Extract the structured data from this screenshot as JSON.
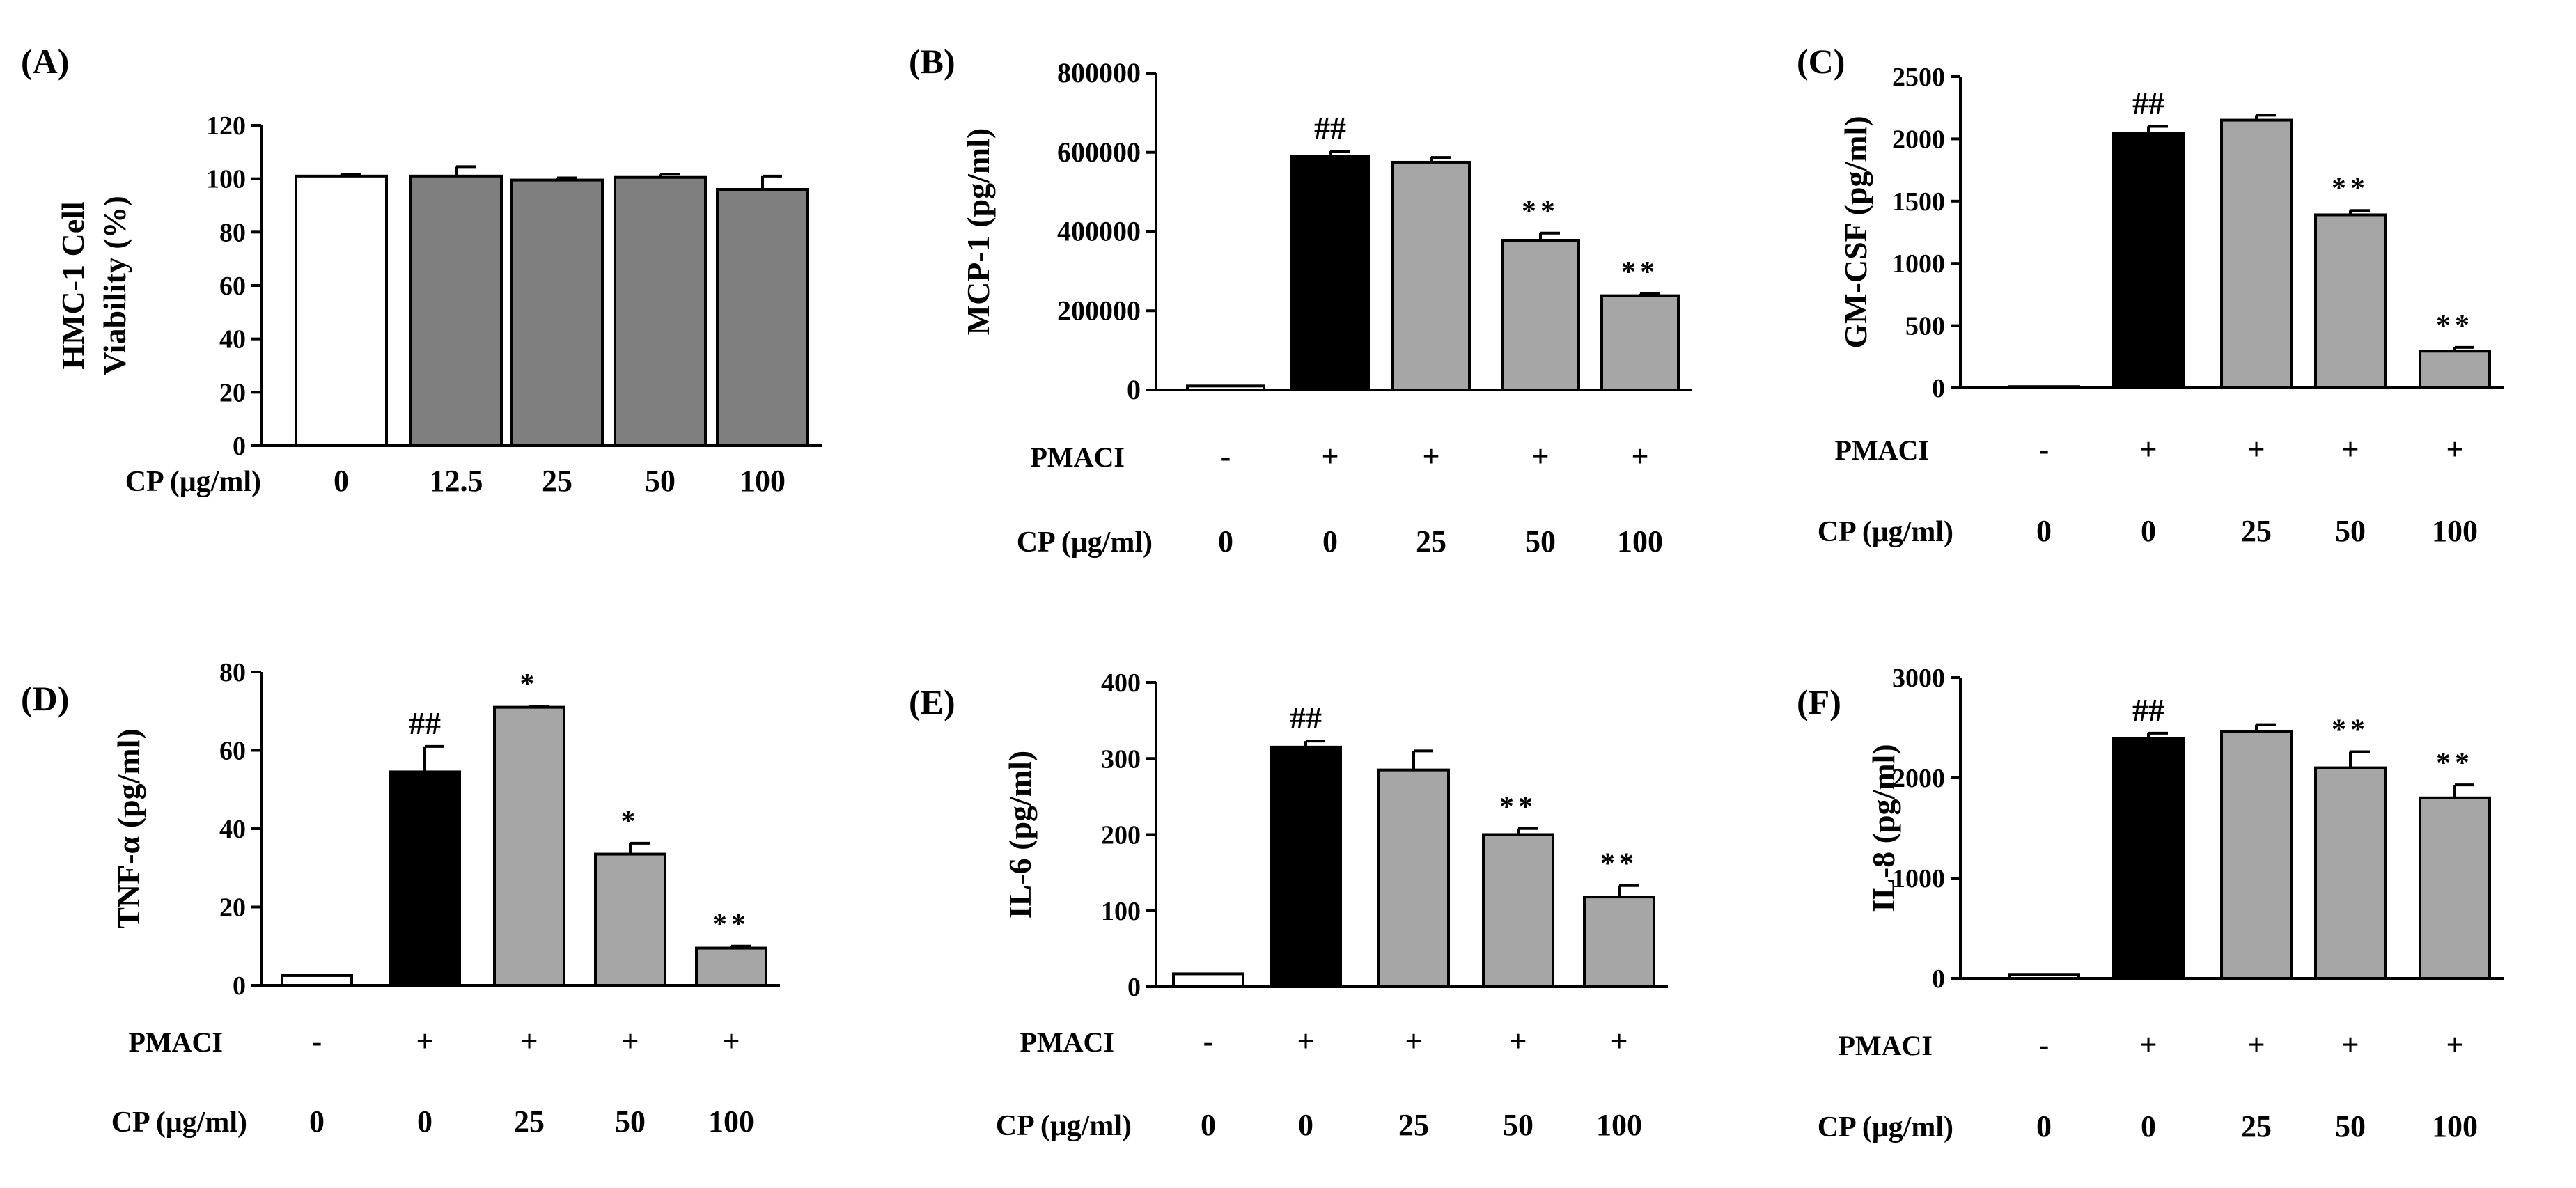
{
  "colors": {
    "control": "#ffffff",
    "black": "#000000",
    "gray_light": "#a6a6a6",
    "gray_dark": "#7f7f7f",
    "axis": "#000000"
  },
  "chart_data": [
    {
      "panel": "(A)",
      "type": "bar",
      "ylabel_lines": [
        "HMC-1 Cell",
        "Viability (%)"
      ],
      "ylim": [
        0,
        120
      ],
      "yticks": [
        0,
        20,
        40,
        60,
        80,
        100,
        120
      ],
      "categories": [
        "0",
        "12.5",
        "25",
        "50",
        "100"
      ],
      "values": [
        101,
        101,
        99.5,
        100.5,
        96
      ],
      "errors": [
        0.6,
        3.5,
        0.8,
        1.2,
        5
      ],
      "fills": [
        "control",
        "gray_dark",
        "gray_dark",
        "gray_dark",
        "gray_dark"
      ],
      "annotations": [
        "",
        "",
        "",
        "",
        ""
      ],
      "pmaci": null,
      "pmaci_label": "",
      "cp_label": "CP (μg/ml)"
    },
    {
      "panel": "(B)",
      "type": "bar",
      "ylabel_lines": [
        "MCP-1 (pg/ml)"
      ],
      "ylim": [
        0,
        800000
      ],
      "yticks": [
        0,
        200000,
        400000,
        600000,
        800000
      ],
      "categories": [
        "0",
        "0",
        "25",
        "50",
        "100"
      ],
      "values": [
        10000,
        590000,
        575000,
        378000,
        238000
      ],
      "errors": [
        0,
        13000,
        12000,
        18000,
        5000
      ],
      "fills": [
        "control",
        "black",
        "gray_light",
        "gray_light",
        "gray_light"
      ],
      "annotations": [
        "",
        "##",
        "",
        "**",
        "**"
      ],
      "pmaci": [
        "-",
        "+",
        "+",
        "+",
        "+"
      ],
      "pmaci_label": "PMACI",
      "cp_label": "CP (μg/ml)"
    },
    {
      "panel": "(C)",
      "type": "bar",
      "ylabel_lines": [
        "GM-CSF (pg/ml)"
      ],
      "ylim": [
        0,
        2500
      ],
      "yticks": [
        0,
        500,
        1000,
        1500,
        2000,
        2500
      ],
      "categories": [
        "0",
        "0",
        "25",
        "50",
        "100"
      ],
      "values": [
        10,
        2045,
        2150,
        1390,
        295
      ],
      "errors": [
        0,
        55,
        40,
        35,
        30
      ],
      "fills": [
        "control",
        "black",
        "gray_light",
        "gray_light",
        "gray_light"
      ],
      "annotations": [
        "",
        "##",
        "",
        "**",
        "**"
      ],
      "pmaci": [
        "-",
        "+",
        "+",
        "+",
        "+"
      ],
      "pmaci_label": "PMACI",
      "cp_label": "CP (μg/ml)"
    },
    {
      "panel": "(D)",
      "type": "bar",
      "ylabel_lines": [
        "TNF-α (pg/ml)"
      ],
      "ylim": [
        0,
        80
      ],
      "yticks": [
        0,
        20,
        40,
        60,
        80
      ],
      "categories": [
        "0",
        "0",
        "25",
        "50",
        "100"
      ],
      "values": [
        2.5,
        54.5,
        71,
        33.5,
        9.5
      ],
      "errors": [
        0,
        6.5,
        0.3,
        2.8,
        0.5
      ],
      "fills": [
        "control",
        "black",
        "gray_light",
        "gray_light",
        "gray_light"
      ],
      "annotations": [
        "",
        "##",
        "*",
        "*",
        "**"
      ],
      "pmaci": [
        "-",
        "+",
        "+",
        "+",
        "+"
      ],
      "pmaci_label": "PMACI",
      "cp_label": "CP (μg/ml)"
    },
    {
      "panel": "(E)",
      "type": "bar",
      "ylabel_lines": [
        "IL-6 (pg/ml)"
      ],
      "ylim": [
        0,
        400
      ],
      "yticks": [
        0,
        100,
        200,
        300,
        400
      ],
      "categories": [
        "0",
        "0",
        "25",
        "50",
        "100"
      ],
      "values": [
        17,
        315,
        285,
        200,
        118
      ],
      "errors": [
        0,
        8,
        25,
        8,
        15
      ],
      "fills": [
        "control",
        "black",
        "gray_light",
        "gray_light",
        "gray_light"
      ],
      "annotations": [
        "",
        "##",
        "",
        "**",
        "**"
      ],
      "pmaci": [
        "-",
        "+",
        "+",
        "+",
        "+"
      ],
      "pmaci_label": "PMACI",
      "cp_label": "CP (μg/ml)"
    },
    {
      "panel": "(F)",
      "type": "bar",
      "ylabel_lines": [
        "IL-8 (pg/ml)"
      ],
      "ylim": [
        0,
        3000
      ],
      "yticks": [
        0,
        1000,
        2000,
        3000
      ],
      "categories": [
        "0",
        "0",
        "25",
        "50",
        "100"
      ],
      "values": [
        40,
        2390,
        2460,
        2100,
        1800
      ],
      "errors": [
        0,
        55,
        70,
        160,
        130
      ],
      "fills": [
        "control",
        "black",
        "gray_light",
        "gray_light",
        "gray_light"
      ],
      "annotations": [
        "",
        "##",
        "",
        "**",
        "**"
      ],
      "pmaci": [
        "-",
        "+",
        "+",
        "+",
        "+"
      ],
      "pmaci_label": "PMACI",
      "cp_label": "CP (μg/ml)"
    }
  ]
}
